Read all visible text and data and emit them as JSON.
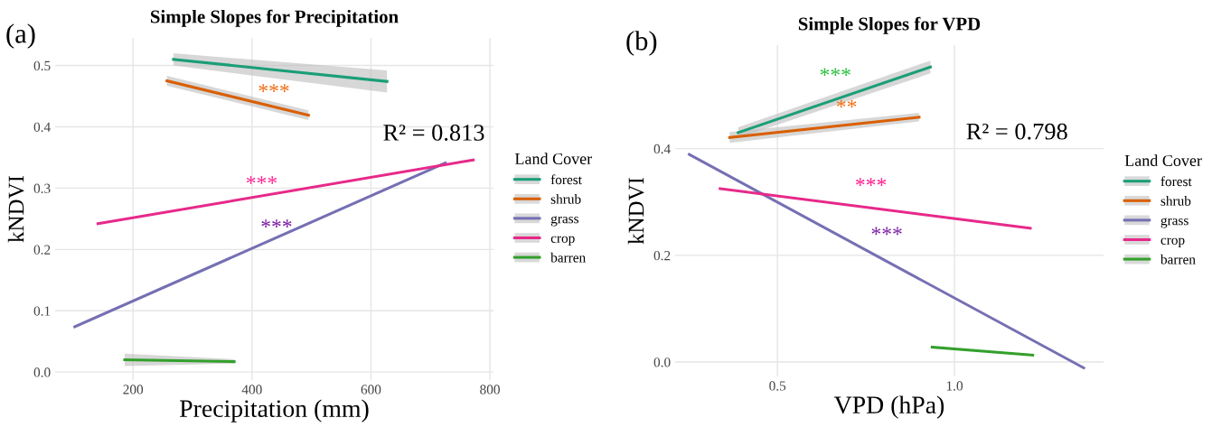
{
  "chart_data": [
    {
      "type": "line",
      "title": "Simple Slopes for Precipitation",
      "xlabel": "Precipitation (mm)",
      "ylabel": "kNDVI",
      "legend_title": "Land Cover",
      "legend": "right",
      "grid": true,
      "line_style": "solid",
      "xlim": [
        69,
        806
      ],
      "ylim": [
        -0.013,
        0.545
      ],
      "xticks": [
        200,
        400,
        600,
        800
      ],
      "yticks": [
        {
          "value": 0,
          "label": "0.0"
        },
        0.1,
        0.2,
        0.3,
        0.4,
        0.5
      ],
      "series": [
        {
          "name": "forest",
          "color": "#1b9e77",
          "x": [
            268,
            627
          ],
          "values": [
            0.51,
            0.474
          ],
          "lower": [
            0.5,
            0.456
          ],
          "upper": [
            0.52,
            0.492
          ]
        },
        {
          "name": "shrub",
          "color": "#d95f02",
          "x": [
            257,
            495
          ],
          "values": [
            0.475,
            0.419
          ],
          "lower": [
            0.467,
            0.411
          ],
          "upper": [
            0.483,
            0.427
          ]
        },
        {
          "name": "grass",
          "color": "#7570b3",
          "x": [
            102,
            725
          ],
          "values": [
            0.074,
            0.341
          ]
        },
        {
          "name": "crop",
          "color": "#e7298a",
          "x": [
            141,
            772
          ],
          "values": [
            0.242,
            0.346
          ]
        },
        {
          "name": "barren",
          "color": "#33a02c",
          "x": [
            186,
            370
          ],
          "values": [
            0.02,
            0.017
          ],
          "lower": [
            0.01,
            0.014
          ],
          "upper": [
            0.03,
            0.021
          ]
        }
      ],
      "annotations": [
        "(a)",
        "***",
        "***",
        "***",
        "R² = 0.813"
      ]
    },
    {
      "type": "line",
      "title": "Simple Slopes for VPD",
      "xlabel": "VPD (hPa)",
      "ylabel": "kNDVI",
      "legend_title": "Land Cover",
      "legend": "right",
      "grid": true,
      "line_style": "solid",
      "xlim": [
        0.211,
        1.421
      ],
      "ylim": [
        -0.027,
        0.594
      ],
      "xticks": [
        0.5,
        {
          "value": 1,
          "label": "1.0"
        }
      ],
      "yticks": [
        {
          "value": 0,
          "label": "0.0"
        },
        0.2,
        0.4
      ],
      "series": [
        {
          "name": "forest",
          "color": "#1b9e77",
          "x": [
            0.389,
            0.932
          ],
          "values": [
            0.43,
            0.553
          ],
          "lower": [
            0.42,
            0.541
          ],
          "upper": [
            0.44,
            0.565
          ]
        },
        {
          "name": "shrub",
          "color": "#d95f02",
          "x": [
            0.365,
            0.9
          ],
          "values": [
            0.421,
            0.459
          ],
          "lower": [
            0.411,
            0.451
          ],
          "upper": [
            0.431,
            0.467
          ]
        },
        {
          "name": "grass",
          "color": "#7570b3",
          "x": [
            0.251,
            1.365
          ],
          "values": [
            0.389,
            -0.011
          ]
        },
        {
          "name": "crop",
          "color": "#e7298a",
          "x": [
            0.338,
            1.214
          ],
          "values": [
            0.325,
            0.251
          ]
        },
        {
          "name": "barren",
          "color": "#33a02c",
          "x": [
            0.937,
            1.221
          ],
          "values": [
            0.028,
            0.013
          ]
        }
      ],
      "annotations": [
        "(b)",
        "***",
        "**",
        "***",
        "***",
        "R² = 0.798"
      ]
    }
  ]
}
